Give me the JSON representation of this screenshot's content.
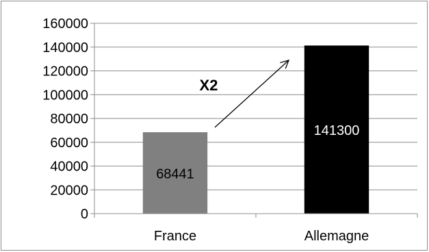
{
  "chart_data": {
    "type": "bar",
    "categories": [
      "France",
      "Allemagne"
    ],
    "values": [
      68441,
      141300
    ],
    "data_labels": [
      "68441",
      "141300"
    ],
    "bar_colors": [
      "#808080",
      "#000000"
    ],
    "data_label_colors": [
      "#000000",
      "#ffffff"
    ],
    "ylim": [
      0,
      160000
    ],
    "yticks": [
      0,
      20000,
      40000,
      60000,
      80000,
      100000,
      120000,
      140000,
      160000
    ],
    "ytick_labels": [
      "0",
      "20000",
      "40000",
      "60000",
      "80000",
      "100000",
      "120000",
      "140000",
      "160000"
    ],
    "grid": true,
    "legend": "none",
    "annotation": {
      "text": "X2",
      "arrow": "from France bar to Allemagne bar"
    }
  }
}
